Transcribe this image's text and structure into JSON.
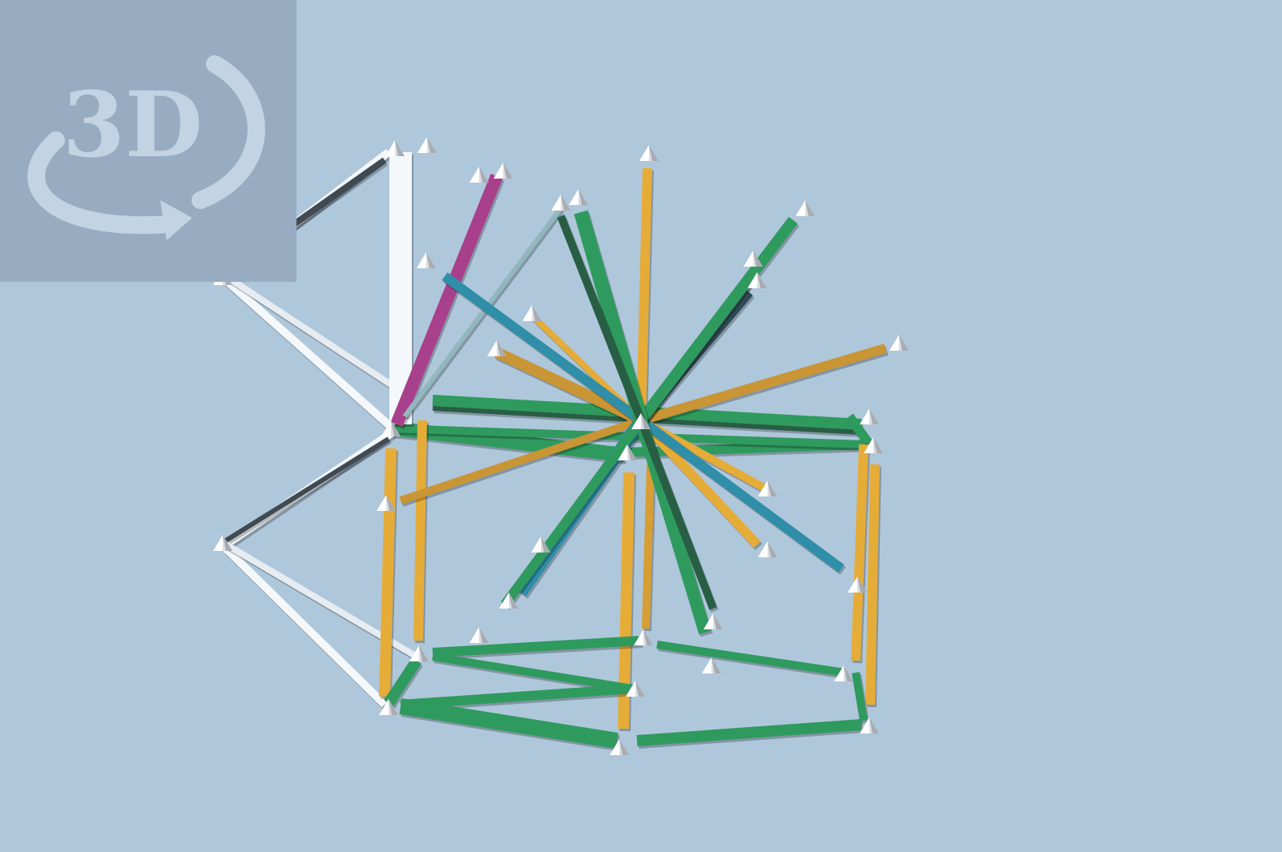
{
  "badge": {
    "label": "3D",
    "icon": "rotate-3d-icon",
    "color_bg": "#98acc1",
    "color_fg": "#c2d3e3"
  },
  "scene": {
    "background": "#afc7db",
    "colors": {
      "green": "#2f9a5e",
      "orange": "#e6ac38",
      "blue": "#2f8ea8",
      "white": "#f4f8fb",
      "dark": "#3f4a52",
      "magenta": "#a8408c",
      "gray": "#93b7bf",
      "node": "#ffffff"
    }
  }
}
